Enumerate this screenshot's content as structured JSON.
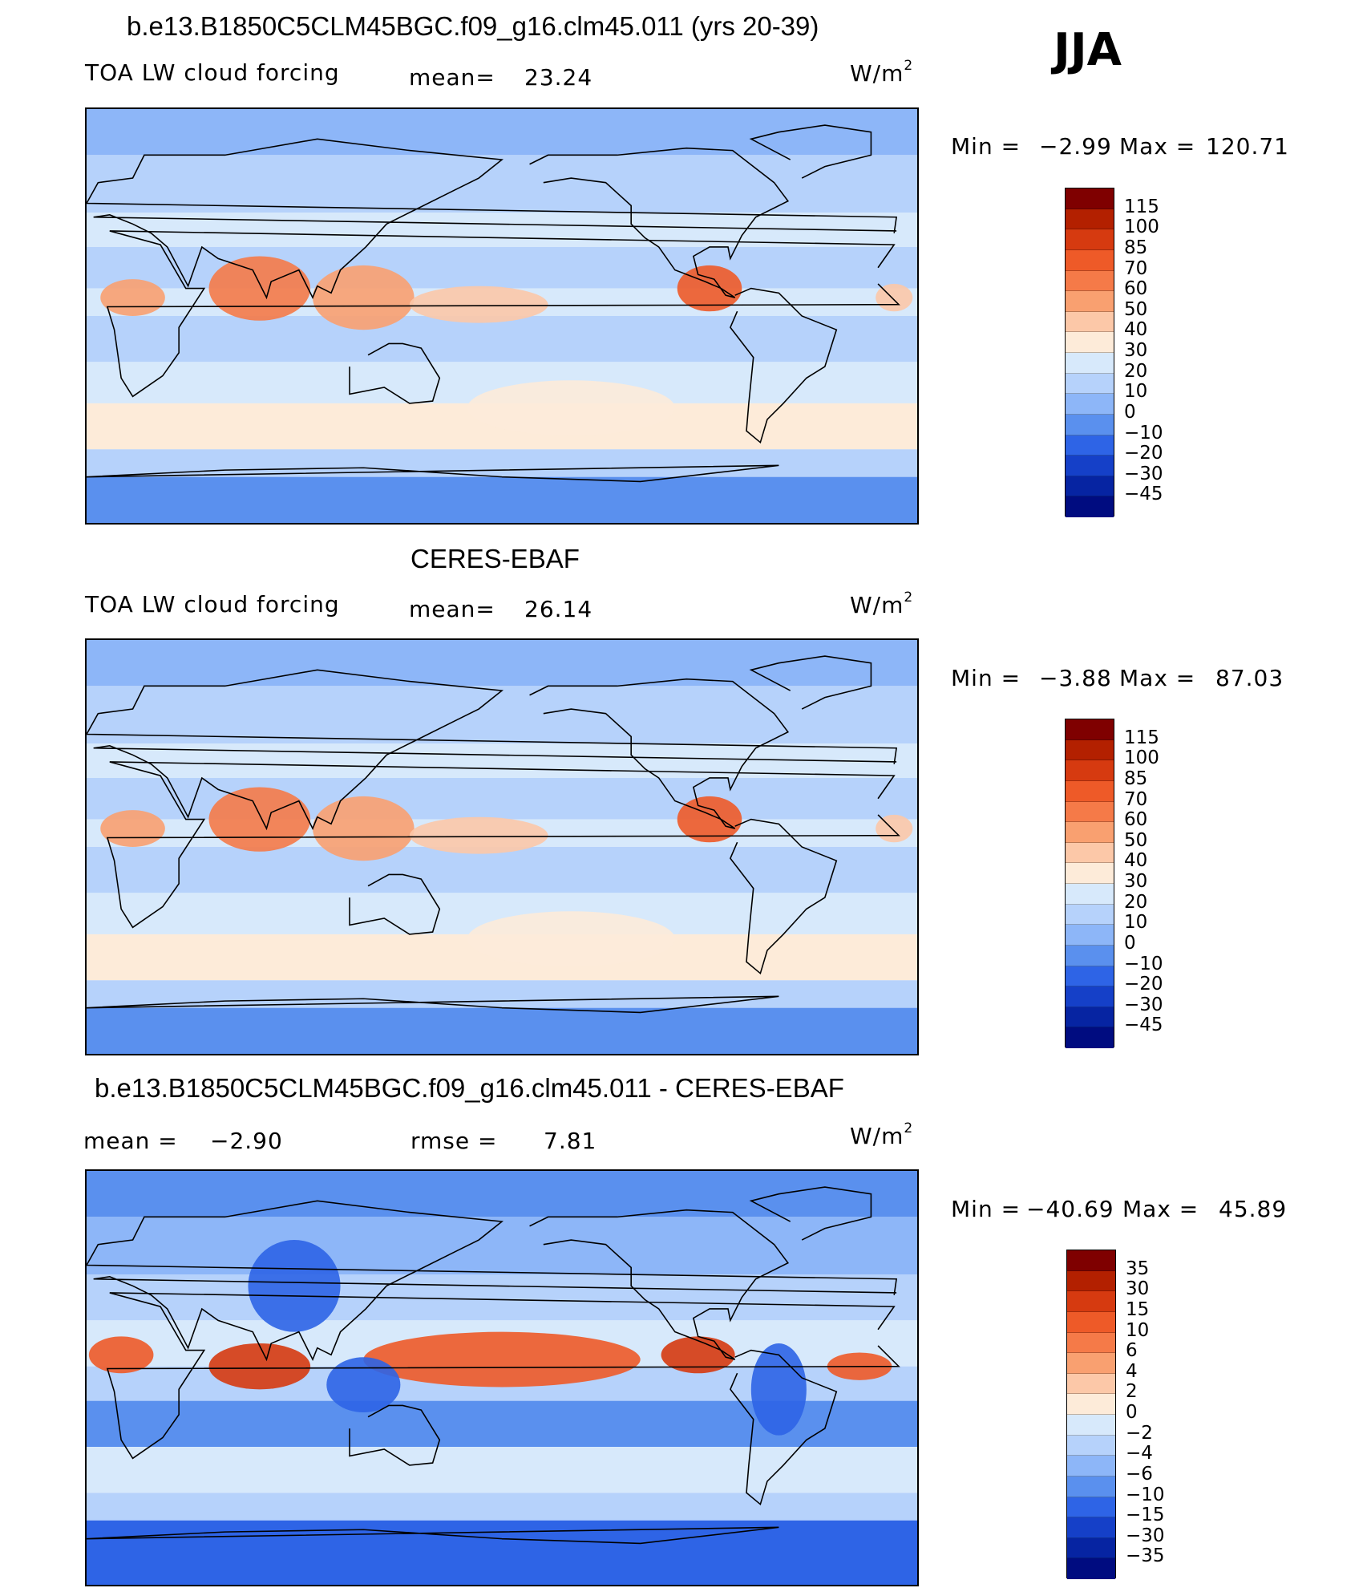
{
  "season": "JJA",
  "chart_data": [
    {
      "type": "heatmap",
      "id": "model",
      "title": "b.e13.B1850C5CLM45BGC.f09_g16.clm45.011 (yrs 20-39)",
      "variable": "TOA LW cloud forcing",
      "mean_label": "mean=",
      "mean": "23.24",
      "units": "W/m",
      "units_exp": "2",
      "min_label": "Min =",
      "min": "−2.99",
      "max_label": "Max =",
      "max": "120.71",
      "colorbar_levels": [
        "115",
        "100",
        "85",
        "70",
        "60",
        "50",
        "40",
        "30",
        "20",
        "10",
        "0",
        "−10",
        "−20",
        "−30",
        "−45"
      ],
      "colorbar_colors": [
        "#7f0000",
        "#b32000",
        "#d63a10",
        "#ee5a28",
        "#f57a48",
        "#f9a070",
        "#fcc8a8",
        "#fdebd9",
        "#d7e9fb",
        "#b6d2fb",
        "#8db6f8",
        "#5a90ee",
        "#2e64e6",
        "#1540c8",
        "#0624a2",
        "#000c80"
      ]
    },
    {
      "type": "heatmap",
      "id": "obs",
      "title": "CERES-EBAF",
      "variable": "TOA LW cloud forcing",
      "mean_label": "mean=",
      "mean": "26.14",
      "units": "W/m",
      "units_exp": "2",
      "min_label": "Min =",
      "min": "−3.88",
      "max_label": "Max =",
      "max": "87.03",
      "colorbar_levels": [
        "115",
        "100",
        "85",
        "70",
        "60",
        "50",
        "40",
        "30",
        "20",
        "10",
        "0",
        "−10",
        "−20",
        "−30",
        "−45"
      ],
      "colorbar_colors": [
        "#7f0000",
        "#b32000",
        "#d63a10",
        "#ee5a28",
        "#f57a48",
        "#f9a070",
        "#fcc8a8",
        "#fdebd9",
        "#d7e9fb",
        "#b6d2fb",
        "#8db6f8",
        "#5a90ee",
        "#2e64e6",
        "#1540c8",
        "#0624a2",
        "#000c80"
      ]
    },
    {
      "type": "heatmap",
      "id": "diff",
      "title": "b.e13.B1850C5CLM45BGC.f09_g16.clm45.011 - CERES-EBAF",
      "mean_label": "mean =",
      "mean": "−2.90",
      "rmse_label": "rmse =",
      "rmse": "7.81",
      "units": "W/m",
      "units_exp": "2",
      "min_label": "Min =",
      "min": "−40.69",
      "max_label": "Max =",
      "max": "45.89",
      "colorbar_levels": [
        "35",
        "30",
        "15",
        "10",
        "6",
        "4",
        "2",
        "0",
        "−2",
        "−4",
        "−6",
        "−10",
        "−15",
        "−30",
        "−35"
      ],
      "colorbar_colors": [
        "#7f0000",
        "#b32000",
        "#d63a10",
        "#ee5a28",
        "#f57a48",
        "#f9a070",
        "#fcc8a8",
        "#fdebd9",
        "#d7e9fb",
        "#b6d2fb",
        "#8db6f8",
        "#5a90ee",
        "#2e64e6",
        "#1540c8",
        "#0624a2",
        "#000c80"
      ]
    }
  ]
}
